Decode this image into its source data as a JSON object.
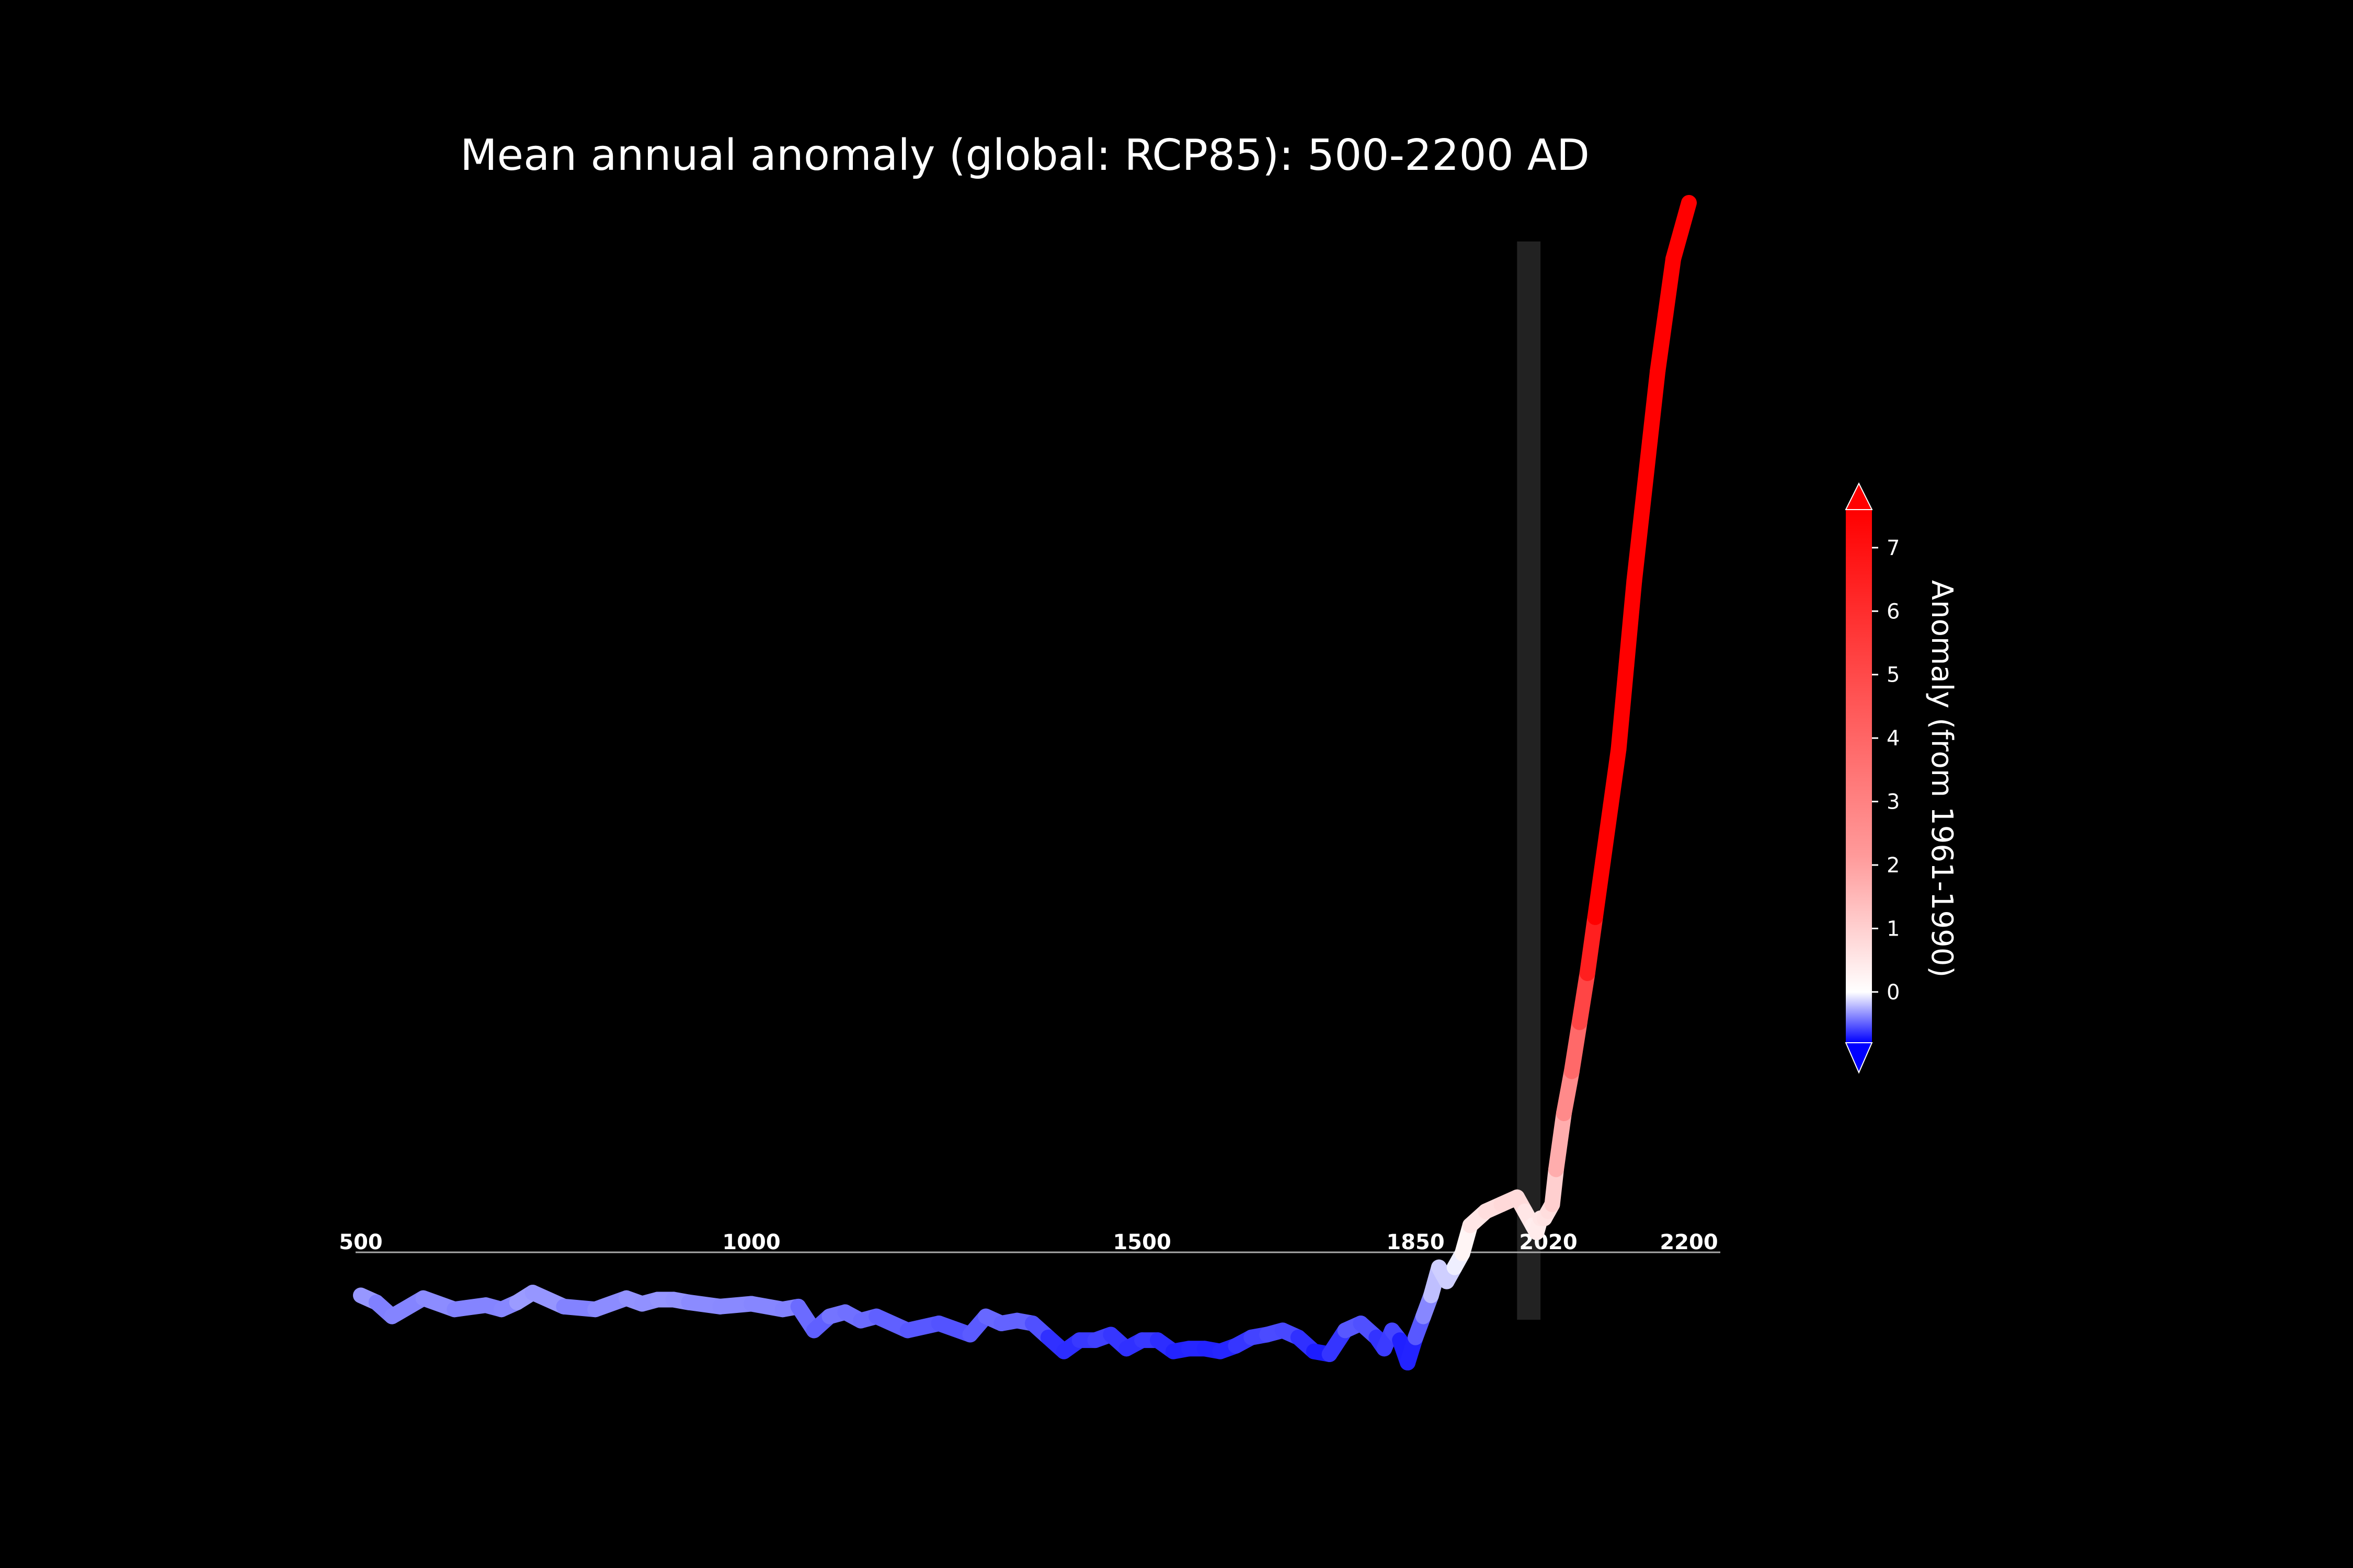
{
  "chart_data": {
    "type": "line",
    "title": "Mean annual anomaly (global: RCP85): 500-2200 AD",
    "xlabel": "",
    "ylabel": "",
    "xlim": [
      500,
      2200
    ],
    "ylim": [
      -0.8,
      7.6
    ],
    "grid": false,
    "x_tick_labels": [
      "500",
      "1000",
      "1500",
      "1850",
      "2020",
      "2200"
    ],
    "x_ticks": [
      500,
      1000,
      1500,
      1850,
      2020,
      2200
    ],
    "highlight_band": [
      1980,
      2010
    ],
    "series": [
      {
        "x": [
          500,
          520,
          540,
          580,
          620,
          660,
          680,
          700,
          720,
          760,
          800,
          840,
          860,
          880,
          900,
          920,
          960,
          1000,
          1040,
          1060,
          1080,
          1100,
          1120,
          1140,
          1160,
          1200,
          1240,
          1280,
          1300,
          1320,
          1340,
          1360,
          1380,
          1400,
          1420,
          1440,
          1460,
          1480,
          1500,
          1520,
          1540,
          1560,
          1580,
          1600,
          1620,
          1640,
          1660,
          1680,
          1700,
          1720,
          1740,
          1760,
          1780,
          1800,
          1810,
          1820,
          1830,
          1840,
          1850,
          1860,
          1870,
          1880,
          1890,
          1900,
          1910,
          1920,
          1940,
          1960,
          1980,
          1990,
          2000,
          2005,
          2010,
          2015,
          2020,
          2025,
          2030,
          2040,
          2050,
          2060,
          2070,
          2080,
          2090,
          2100,
          2110,
          2120,
          2130,
          2140,
          2150,
          2160,
          2170,
          2180,
          2190,
          2200
        ],
        "values": [
          -0.3,
          -0.35,
          -0.45,
          -0.32,
          -0.4,
          -0.37,
          -0.4,
          -0.35,
          -0.28,
          -0.38,
          -0.4,
          -0.32,
          -0.36,
          -0.33,
          -0.33,
          -0.35,
          -0.38,
          -0.36,
          -0.4,
          -0.38,
          -0.55,
          -0.45,
          -0.42,
          -0.48,
          -0.45,
          -0.55,
          -0.5,
          -0.58,
          -0.45,
          -0.5,
          -0.48,
          -0.5,
          -0.6,
          -0.7,
          -0.62,
          -0.62,
          -0.58,
          -0.68,
          -0.62,
          -0.62,
          -0.7,
          -0.68,
          -0.68,
          -0.7,
          -0.66,
          -0.6,
          -0.58,
          -0.55,
          -0.6,
          -0.7,
          -0.72,
          -0.55,
          -0.5,
          -0.6,
          -0.68,
          -0.55,
          -0.62,
          -0.78,
          -0.6,
          -0.45,
          -0.3,
          -0.1,
          -0.2,
          -0.1,
          0.0,
          0.2,
          0.3,
          0.35,
          0.4,
          0.3,
          0.2,
          0.15,
          0.25,
          0.25,
          0.3,
          0.35,
          0.6,
          1.0,
          1.3,
          1.65,
          2.0,
          2.4,
          2.8,
          3.2,
          3.6,
          4.2,
          4.8,
          5.3,
          5.8,
          6.3,
          6.7,
          7.1,
          7.3,
          7.5
        ]
      }
    ],
    "colorbar": {
      "label": "Anomaly (from 1961-1990)",
      "ticks": [
        "0",
        "1",
        "2",
        "3",
        "4",
        "5",
        "6",
        "7"
      ],
      "range": [
        -0.8,
        7.6
      ],
      "extend": "both"
    },
    "colors": {
      "background": "#000000",
      "text": "#ffffff",
      "cold": "#0000ff",
      "neutral": "#ffffff",
      "warm": "#ff0000",
      "band": "#222222",
      "baseline": "#aaaaaa"
    }
  }
}
